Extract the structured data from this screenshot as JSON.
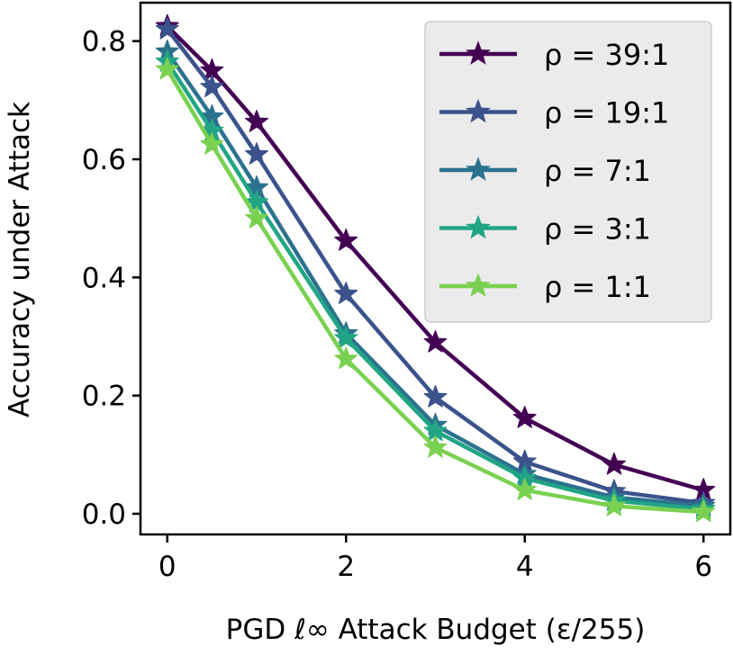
{
  "chart_data": {
    "type": "line",
    "title": "",
    "xlabel": "PGD ℓ∞ Attack Budget (ε/255)",
    "ylabel": "Accuracy under Attack",
    "x": [
      0,
      0.5,
      1,
      2,
      3,
      4,
      5,
      6
    ],
    "xlim": [
      -0.3,
      6.3
    ],
    "ylim": [
      -0.035,
      0.865
    ],
    "xticks": [
      0,
      2,
      4,
      6
    ],
    "yticks": [
      0.0,
      0.2,
      0.4,
      0.6,
      0.8
    ],
    "xtick_labels": [
      "0",
      "2",
      "4",
      "6"
    ],
    "ytick_labels": [
      "0.0",
      "0.2",
      "0.4",
      "0.6",
      "0.8"
    ],
    "grid": false,
    "legend_position": "top-right",
    "marker": "star",
    "series": [
      {
        "name": "ρ = 39:1",
        "color": "#440154",
        "values": [
          0.825,
          0.75,
          0.663,
          0.462,
          0.29,
          0.162,
          0.083,
          0.04
        ]
      },
      {
        "name": "ρ = 19:1",
        "color": "#3b528b",
        "values": [
          0.82,
          0.722,
          0.608,
          0.372,
          0.197,
          0.088,
          0.038,
          0.018
        ]
      },
      {
        "name": "ρ = 7:1",
        "color": "#2c728e",
        "values": [
          0.782,
          0.672,
          0.552,
          0.305,
          0.15,
          0.067,
          0.028,
          0.013
        ]
      },
      {
        "name": "ρ = 3:1",
        "color": "#21a585",
        "values": [
          0.765,
          0.648,
          0.527,
          0.297,
          0.14,
          0.06,
          0.022,
          0.008
        ]
      },
      {
        "name": "ρ = 1:1",
        "color": "#7ad151",
        "values": [
          0.752,
          0.625,
          0.5,
          0.262,
          0.112,
          0.04,
          0.013,
          0.003
        ]
      }
    ]
  }
}
